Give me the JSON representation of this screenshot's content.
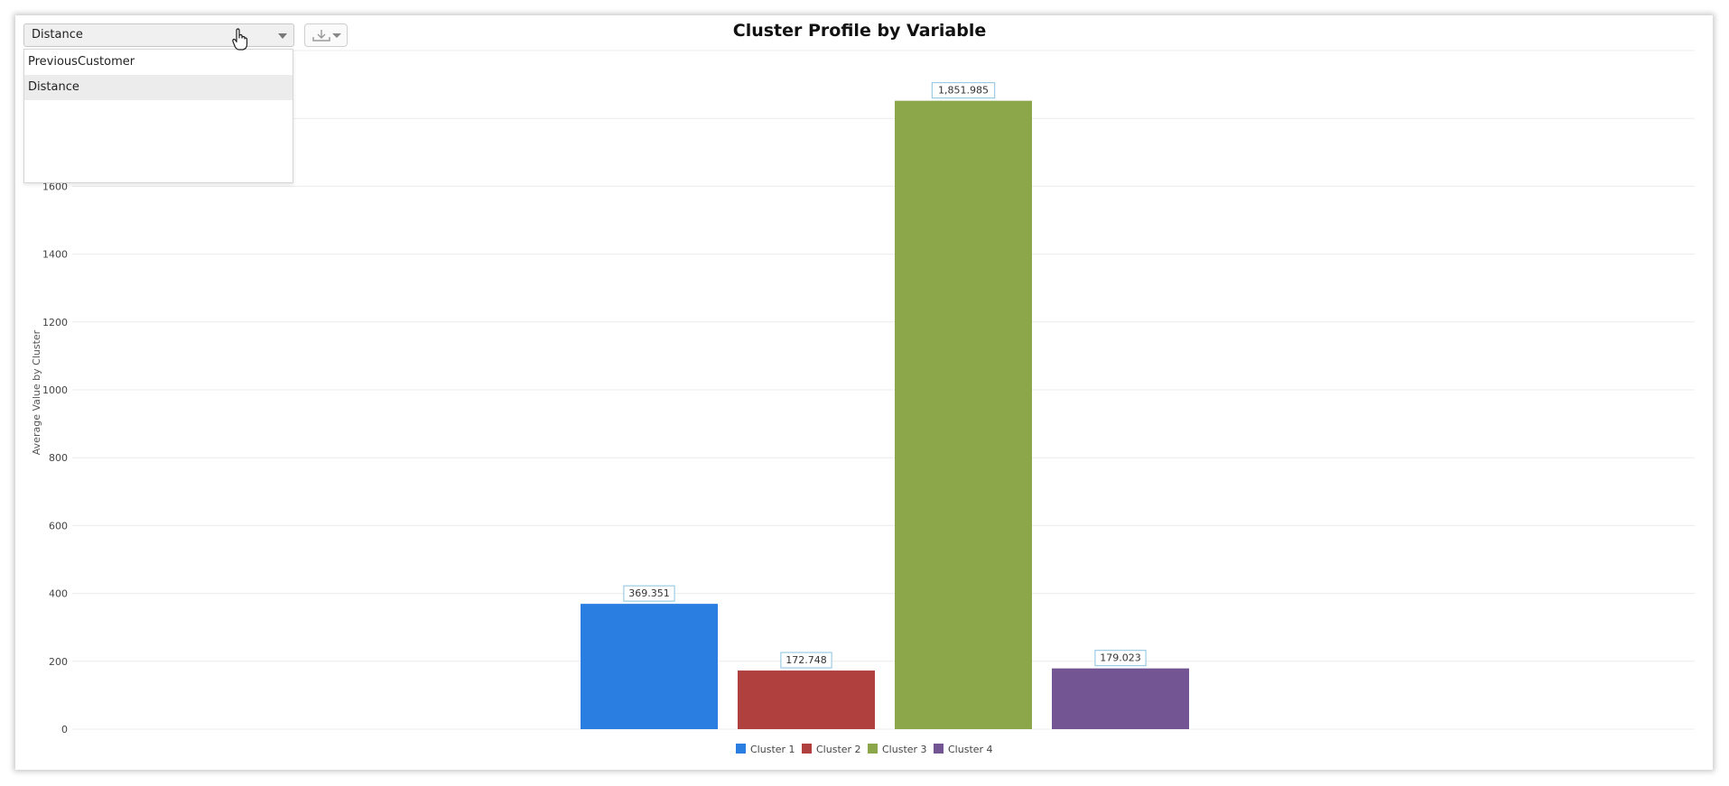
{
  "controls": {
    "variable_select": {
      "selected": "Distance",
      "options": [
        "PreviousCustomer",
        "Distance"
      ]
    },
    "export_icon": "download-icon"
  },
  "colors": {
    "cluster_1": "#2a7de1",
    "cluster_2": "#b0403d",
    "cluster_3": "#8ba74a",
    "cluster_4": "#725592",
    "grid": "#ececec",
    "label_border": "#89c1e0"
  },
  "chart_data": {
    "type": "bar",
    "title": "Cluster Profile by Variable",
    "xlabel": "",
    "ylabel": "Average Value by Cluster",
    "ylim": [
      0,
      2000
    ],
    "yticks": [
      0,
      200,
      400,
      600,
      800,
      1000,
      1200,
      1400,
      1600
    ],
    "grid": true,
    "legend_position": "bottom",
    "series": [
      {
        "name": "Cluster 1",
        "values": [
          369.351
        ],
        "label": "369.351"
      },
      {
        "name": "Cluster 2",
        "values": [
          172.748
        ],
        "label": "172.748"
      },
      {
        "name": "Cluster 3",
        "values": [
          1851.985
        ],
        "label": "1,851.985"
      },
      {
        "name": "Cluster 4",
        "values": [
          179.023
        ],
        "label": "179.023"
      }
    ]
  }
}
